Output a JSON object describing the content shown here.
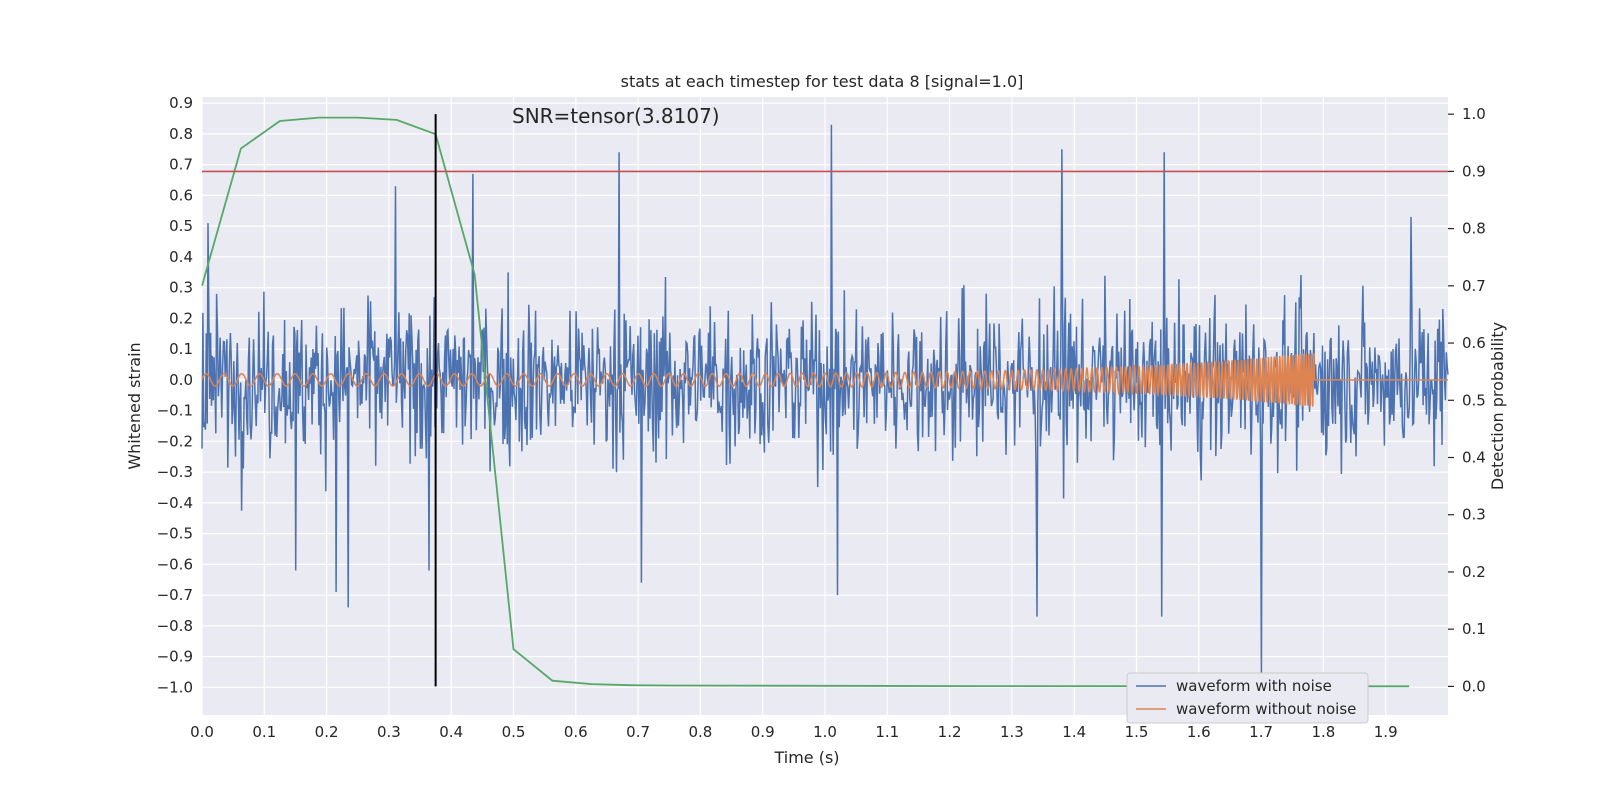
{
  "chart_data": {
    "type": "line",
    "title": "stats at each timestep for test data 8 [signal=1.0]",
    "xlabel": "Time (s)",
    "ylabel": "Whitened strain",
    "y2label": "Detection probability",
    "annotation": "SNR=tensor(3.8107)",
    "xlim": [
      0.0,
      2.0
    ],
    "ylim": [
      -1.09,
      0.92
    ],
    "y2lim": [
      -0.05,
      1.03
    ],
    "x_ticks": [
      0.0,
      0.1,
      0.2,
      0.3,
      0.4,
      0.5,
      0.6,
      0.7,
      0.8,
      0.9,
      1.0,
      1.1,
      1.2,
      1.3,
      1.4,
      1.5,
      1.6,
      1.7,
      1.8,
      1.9
    ],
    "x_tick_labels": [
      "0.0",
      "0.1",
      "0.2",
      "0.3",
      "0.4",
      "0.5",
      "0.6",
      "0.7",
      "0.8",
      "0.9",
      "1.0",
      "1.1",
      "1.2",
      "1.3",
      "1.4",
      "1.5",
      "1.6",
      "1.7",
      "1.8",
      "1.9"
    ],
    "y_ticks": [
      0.9,
      0.8,
      0.7,
      0.6,
      0.5,
      0.4,
      0.3,
      0.2,
      0.1,
      0.0,
      -0.1,
      -0.2,
      -0.3,
      -0.4,
      -0.5,
      -0.6,
      -0.7,
      -0.8,
      -0.9,
      -1.0
    ],
    "y_tick_labels": [
      "0.9",
      "0.8",
      "0.7",
      "0.6",
      "0.5",
      "0.4",
      "0.3",
      "0.2",
      "0.1",
      "0.0",
      "−0.1",
      "−0.2",
      "−0.3",
      "−0.4",
      "−0.5",
      "−0.6",
      "−0.7",
      "−0.8",
      "−0.9",
      "−1.0"
    ],
    "y2_ticks": [
      1.0,
      0.9,
      0.8,
      0.7,
      0.6,
      0.5,
      0.4,
      0.3,
      0.2,
      0.1,
      0.0
    ],
    "y2_tick_labels": [
      "1.0",
      "0.9",
      "0.8",
      "0.7",
      "0.6",
      "0.5",
      "0.4",
      "0.3",
      "0.2",
      "0.1",
      "0.0"
    ],
    "grid": true,
    "legend_position": "bottom-right",
    "series": [
      {
        "name": "waveform with noise",
        "color": "#4c72b0",
        "axis": "left",
        "kind": "noisy waveform",
        "x_range": [
          0.0,
          2.0
        ],
        "approx_amplitude": 0.25,
        "peaks": [
          {
            "x": 0.01,
            "y": 0.51
          },
          {
            "x": 0.15,
            "y": -0.62
          },
          {
            "x": 0.215,
            "y": -0.69
          },
          {
            "x": 0.235,
            "y": -0.74
          },
          {
            "x": 0.31,
            "y": 0.63
          },
          {
            "x": 0.365,
            "y": -0.62
          },
          {
            "x": 0.435,
            "y": 0.67
          },
          {
            "x": 0.67,
            "y": 0.74
          },
          {
            "x": 0.705,
            "y": -0.66
          },
          {
            "x": 1.01,
            "y": 0.83
          },
          {
            "x": 1.02,
            "y": -0.7
          },
          {
            "x": 1.38,
            "y": 0.75
          },
          {
            "x": 1.34,
            "y": -0.77
          },
          {
            "x": 1.545,
            "y": 0.74
          },
          {
            "x": 1.54,
            "y": -0.77
          },
          {
            "x": 1.7,
            "y": -0.96
          },
          {
            "x": 1.94,
            "y": 0.53
          }
        ]
      },
      {
        "name": "waveform without noise",
        "color": "#dd8452",
        "axis": "left",
        "kind": "chirp",
        "start_frequency_hz": 35,
        "end_frequency_hz": 250,
        "start_amplitude": 0.02,
        "end_amplitude": 0.09,
        "merger_time": 1.785,
        "x_range": [
          0.0,
          2.0
        ]
      },
      {
        "name": "",
        "color": "#55a868",
        "axis": "right",
        "kind": "detection probability",
        "x": [
          0.0,
          0.0625,
          0.125,
          0.1875,
          0.25,
          0.3125,
          0.375,
          0.4375,
          0.5,
          0.5625,
          0.625,
          0.6875,
          0.75,
          1.0,
          1.25,
          1.5,
          1.75,
          1.9375
        ],
        "y": [
          0.7,
          0.94,
          0.988,
          0.994,
          0.994,
          0.99,
          0.965,
          0.72,
          0.065,
          0.01,
          0.004,
          0.002,
          0.0015,
          0.001,
          0.0005,
          0.0003,
          0.0002,
          0.0001
        ]
      }
    ],
    "threshold": {
      "value": 0.9,
      "axis": "right",
      "color": "#c44e52"
    },
    "marker_line": {
      "x": 0.375,
      "color": "#000000"
    }
  }
}
